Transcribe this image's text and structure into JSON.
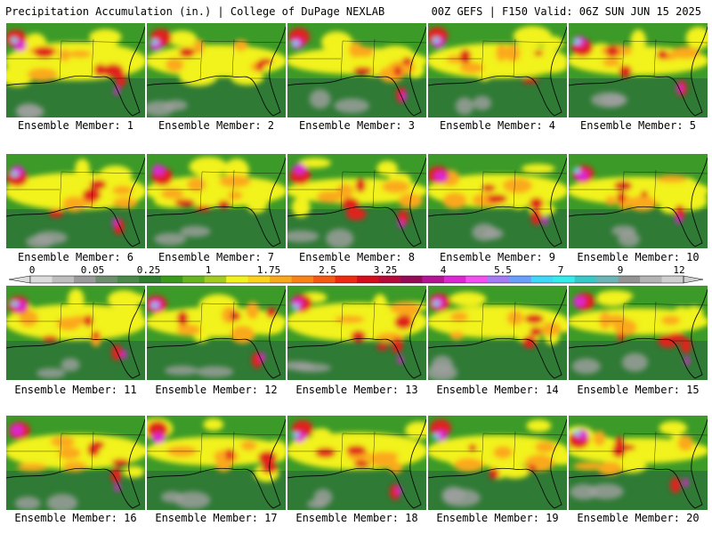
{
  "header": {
    "left": "Precipitation Accumulation (in.) | College of DuPage NEXLAB",
    "right": "00Z GEFS | F150 Valid: 06Z SUN JUN 15 2025"
  },
  "colorbar": {
    "ticks": [
      "0",
      "0.05",
      "0.25",
      "1",
      "1.75",
      "2.5",
      "3.25",
      "4",
      "5.5",
      "7",
      "9",
      "12"
    ],
    "colors": [
      "#dcdcdc",
      "#bebebe",
      "#9b9b9b",
      "#6e8f6e",
      "#4a8a4a",
      "#2f7d2f",
      "#3a9a1a",
      "#68b521",
      "#a2cc22",
      "#f2f21e",
      "#fcd21e",
      "#fba91c",
      "#f88418",
      "#f55a14",
      "#ee2a12",
      "#d40e1c",
      "#b50c3a",
      "#960b58",
      "#b41496",
      "#dc28d2",
      "#f250f0",
      "#a67cf6",
      "#6aa0fa",
      "#40d8f8",
      "#34ecec",
      "#38c8c8",
      "#6ab6b6",
      "#949494",
      "#b4b4b4",
      "#cfcfcf"
    ]
  },
  "members": [
    {
      "label": "Ensemble Member: 1"
    },
    {
      "label": "Ensemble Member: 2"
    },
    {
      "label": "Ensemble Member: 3"
    },
    {
      "label": "Ensemble Member: 4"
    },
    {
      "label": "Ensemble Member: 5"
    },
    {
      "label": "Ensemble Member: 6"
    },
    {
      "label": "Ensemble Member: 7"
    },
    {
      "label": "Ensemble Member: 8"
    },
    {
      "label": "Ensemble Member: 9"
    },
    {
      "label": "Ensemble Member: 10"
    },
    {
      "label": "Ensemble Member: 11"
    },
    {
      "label": "Ensemble Member: 12"
    },
    {
      "label": "Ensemble Member: 13"
    },
    {
      "label": "Ensemble Member: 14"
    },
    {
      "label": "Ensemble Member: 15"
    },
    {
      "label": "Ensemble Member: 16"
    },
    {
      "label": "Ensemble Member: 17"
    },
    {
      "label": "Ensemble Member: 18"
    },
    {
      "label": "Ensemble Member: 19"
    },
    {
      "label": "Ensemble Member: 20"
    }
  ],
  "palette": {
    "land_light": "#3c9a28",
    "sea_dark": "#2f7a35",
    "yellow": "#f2f21e",
    "orange": "#fba91c",
    "red": "#e0201a",
    "magenta": "#dc28d2",
    "cyan": "#40d8f8",
    "grey": "#a0a0a0",
    "coast": "#000000"
  }
}
